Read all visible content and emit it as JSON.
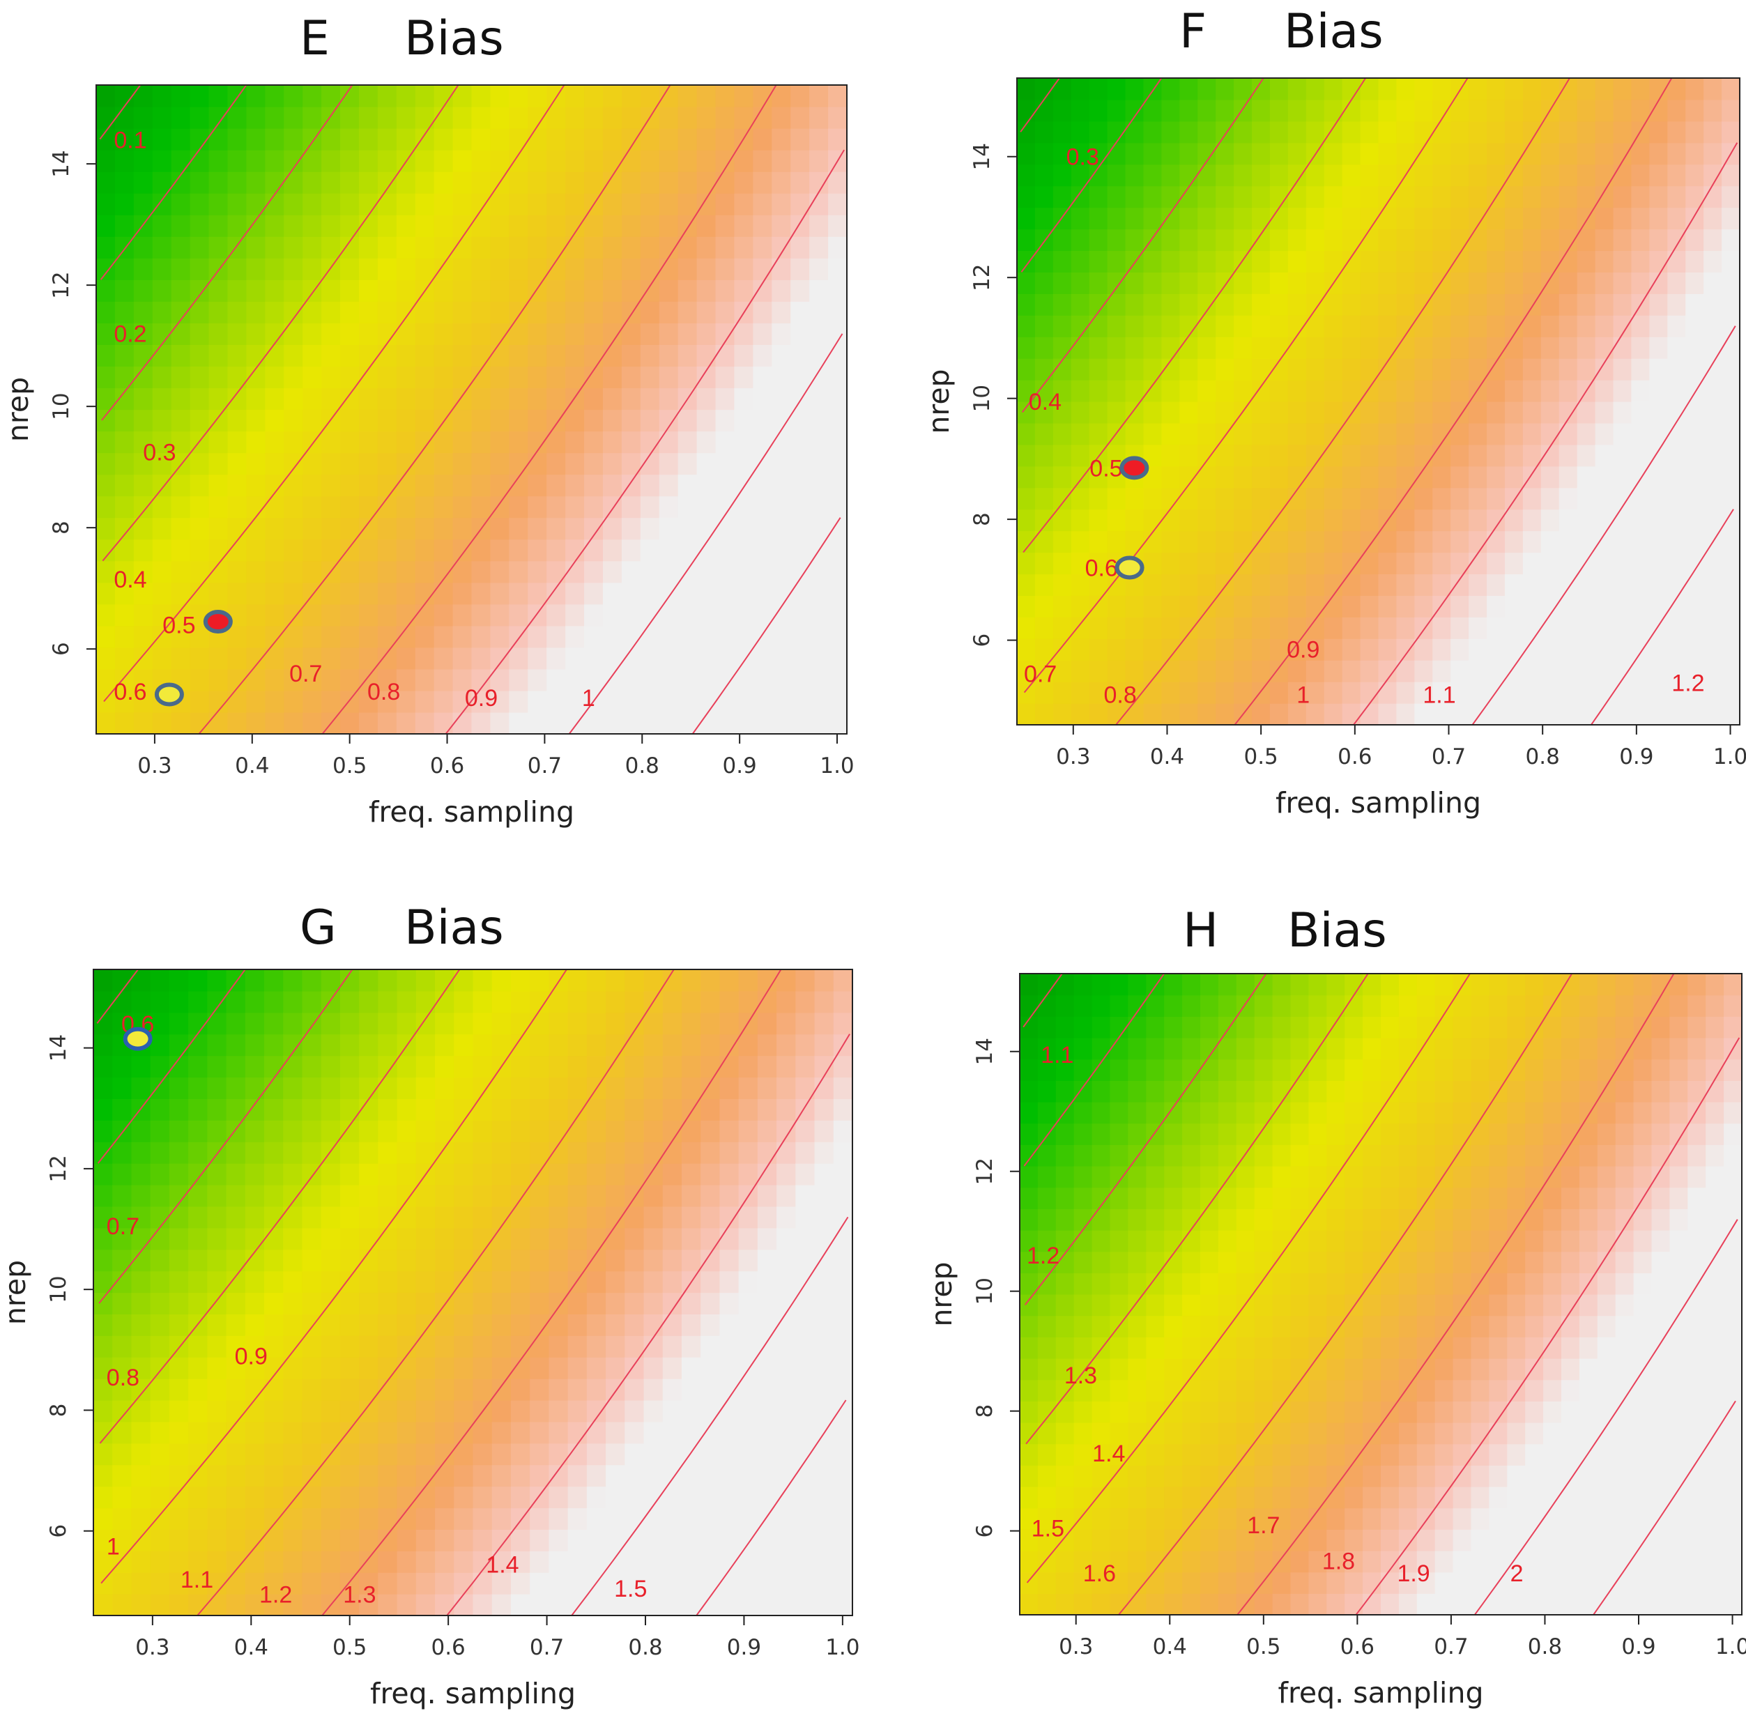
{
  "chart_data": [
    {
      "type": "heatmap",
      "panel_letter": "E",
      "title": "Bias",
      "xlabel": "freq. sampling",
      "ylabel": "nrep",
      "xlim": [
        0.24,
        1.01
      ],
      "ylim": [
        4.6,
        15.3
      ],
      "xticks": [
        "0.3",
        "0.4",
        "0.5",
        "0.6",
        "0.7",
        "0.8",
        "0.9",
        "1.0"
      ],
      "yticks": [
        "6",
        "8",
        "10",
        "12",
        "14"
      ],
      "contour_labels": [
        {
          "text": "0.1",
          "x": 0.275,
          "y": 14.4
        },
        {
          "text": "0.2",
          "x": 0.275,
          "y": 11.2
        },
        {
          "text": "0.3",
          "x": 0.305,
          "y": 9.25
        },
        {
          "text": "0.4",
          "x": 0.275,
          "y": 7.15
        },
        {
          "text": "0.5",
          "x": 0.325,
          "y": 6.4
        },
        {
          "text": "0.6",
          "x": 0.275,
          "y": 5.3
        },
        {
          "text": "0.7",
          "x": 0.455,
          "y": 5.6
        },
        {
          "text": "0.8",
          "x": 0.535,
          "y": 5.3
        },
        {
          "text": "0.9",
          "x": 0.635,
          "y": 5.2
        },
        {
          "text": "1",
          "x": 0.745,
          "y": 5.2
        }
      ],
      "markers": [
        {
          "x": 0.365,
          "y": 6.45,
          "fill": "#ee1c25",
          "ring": "#4a6a8a"
        },
        {
          "x": 0.315,
          "y": 5.25,
          "fill": "#f2ea3a",
          "ring": "#4a6a8a"
        }
      ]
    },
    {
      "type": "heatmap",
      "panel_letter": "F",
      "title": "Bias",
      "xlabel": "freq. sampling",
      "ylabel": "nrep",
      "xlim": [
        0.24,
        1.01
      ],
      "ylim": [
        4.6,
        15.3
      ],
      "xticks": [
        "0.3",
        "0.4",
        "0.5",
        "0.6",
        "0.7",
        "0.8",
        "0.9",
        "1.0"
      ],
      "yticks": [
        "6",
        "8",
        "10",
        "12",
        "14"
      ],
      "contour_labels": [
        {
          "text": "0.3",
          "x": 0.31,
          "y": 14.0
        },
        {
          "text": "0.4",
          "x": 0.27,
          "y": 9.95
        },
        {
          "text": "0.5",
          "x": 0.335,
          "y": 8.85
        },
        {
          "text": "0.6",
          "x": 0.33,
          "y": 7.2
        },
        {
          "text": "0.7",
          "x": 0.265,
          "y": 5.45
        },
        {
          "text": "0.8",
          "x": 0.35,
          "y": 5.1
        },
        {
          "text": "0.9",
          "x": 0.545,
          "y": 5.85
        },
        {
          "text": "1",
          "x": 0.545,
          "y": 5.1
        },
        {
          "text": "1.1",
          "x": 0.69,
          "y": 5.1
        },
        {
          "text": "1.2",
          "x": 0.955,
          "y": 5.3
        }
      ],
      "markers": [
        {
          "x": 0.365,
          "y": 8.85,
          "fill": "#ee1c25",
          "ring": "#4a6a8a"
        },
        {
          "x": 0.36,
          "y": 7.2,
          "fill": "#f2ea3a",
          "ring": "#4a6a8a"
        }
      ]
    },
    {
      "type": "heatmap",
      "panel_letter": "G",
      "title": "Bias",
      "xlabel": "freq. sampling",
      "ylabel": "nrep",
      "xlim": [
        0.24,
        1.01
      ],
      "ylim": [
        4.6,
        15.3
      ],
      "xticks": [
        "0.3",
        "0.4",
        "0.5",
        "0.6",
        "0.7",
        "0.8",
        "0.9",
        "1.0"
      ],
      "yticks": [
        "6",
        "8",
        "10",
        "12",
        "14"
      ],
      "contour_labels": [
        {
          "text": "0.6",
          "x": 0.285,
          "y": 14.4
        },
        {
          "text": "0.7",
          "x": 0.27,
          "y": 11.05
        },
        {
          "text": "0.8",
          "x": 0.27,
          "y": 8.55
        },
        {
          "text": "0.9",
          "x": 0.4,
          "y": 8.9
        },
        {
          "text": "1",
          "x": 0.26,
          "y": 5.75
        },
        {
          "text": "1.1",
          "x": 0.345,
          "y": 5.2
        },
        {
          "text": "1.2",
          "x": 0.425,
          "y": 4.95
        },
        {
          "text": "1.3",
          "x": 0.51,
          "y": 4.95
        },
        {
          "text": "1.4",
          "x": 0.655,
          "y": 5.45
        },
        {
          "text": "1.5",
          "x": 0.785,
          "y": 5.05
        }
      ],
      "markers": [
        {
          "x": 0.285,
          "y": 14.15,
          "fill": "#f2ea3a",
          "ring": "#2a5fb0"
        }
      ]
    },
    {
      "type": "heatmap",
      "panel_letter": "H",
      "title": "Bias",
      "xlabel": "freq. sampling",
      "ylabel": "nrep",
      "xlim": [
        0.24,
        1.01
      ],
      "ylim": [
        4.6,
        15.3
      ],
      "xticks": [
        "0.3",
        "0.4",
        "0.5",
        "0.6",
        "0.7",
        "0.8",
        "0.9",
        "1.0"
      ],
      "yticks": [
        "6",
        "8",
        "10",
        "12",
        "14"
      ],
      "contour_labels": [
        {
          "text": "1.1",
          "x": 0.28,
          "y": 13.95
        },
        {
          "text": "1.2",
          "x": 0.265,
          "y": 10.6
        },
        {
          "text": "1.3",
          "x": 0.305,
          "y": 8.6
        },
        {
          "text": "1.4",
          "x": 0.335,
          "y": 7.3
        },
        {
          "text": "1.5",
          "x": 0.27,
          "y": 6.05
        },
        {
          "text": "1.6",
          "x": 0.325,
          "y": 5.3
        },
        {
          "text": "1.7",
          "x": 0.5,
          "y": 6.1
        },
        {
          "text": "1.8",
          "x": 0.58,
          "y": 5.5
        },
        {
          "text": "1.9",
          "x": 0.66,
          "y": 5.3
        },
        {
          "text": "2",
          "x": 0.77,
          "y": 5.3
        }
      ],
      "markers": []
    }
  ]
}
